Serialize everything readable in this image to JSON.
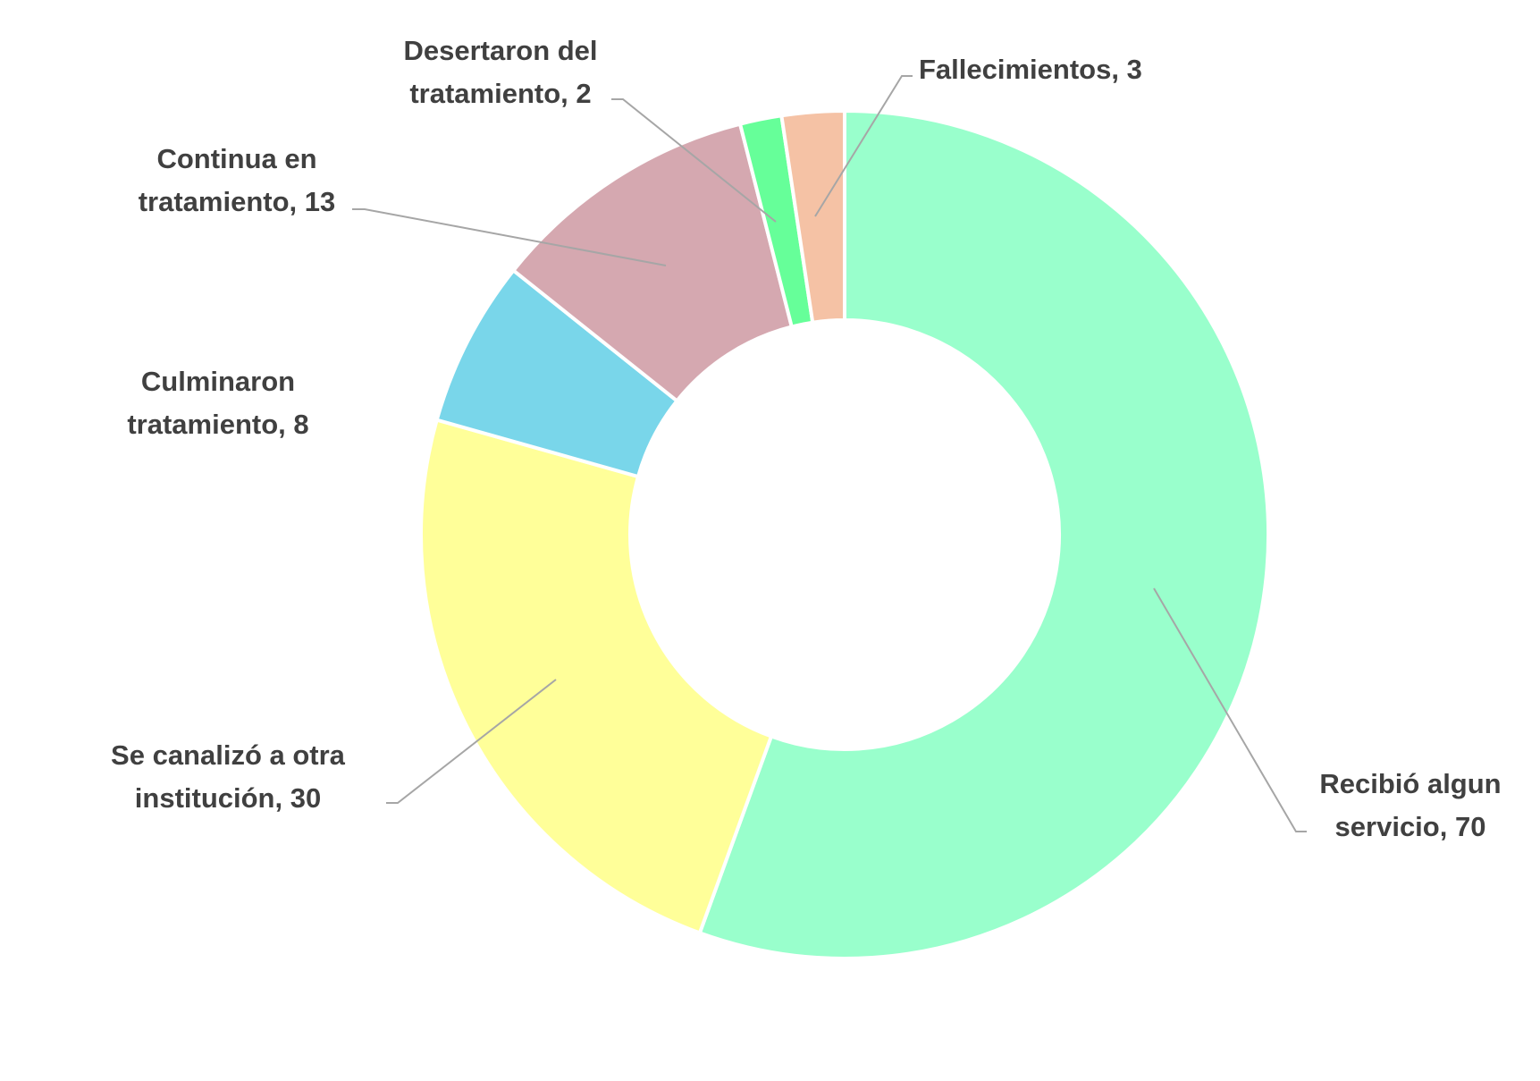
{
  "chart_data": {
    "type": "pie",
    "variant": "donut",
    "title": "",
    "slices": [
      {
        "label": "Recibió algun servicio",
        "value": 70,
        "display": [
          "Recibió algun",
          "servicio, 70"
        ],
        "color": "#99ffcc"
      },
      {
        "label": "Se canalizó a otra institución",
        "value": 30,
        "display": [
          "Se canalizó a otra",
          "institución, 30"
        ],
        "color": "#ffff99"
      },
      {
        "label": "Culminaron tratamiento",
        "value": 8,
        "display": [
          "Culminaron",
          "tratamiento, 8"
        ],
        "color": "#79d6ea"
      },
      {
        "label": "Continua en tratamiento",
        "value": 13,
        "display": [
          "Continua en",
          "tratamiento, 13"
        ],
        "color": "#d5a8b0"
      },
      {
        "label": "Desertaron del tratamiento",
        "value": 2,
        "display": [
          "Desertaron del",
          "tratamiento, 2"
        ],
        "color": "#66ff99"
      },
      {
        "label": "Fallecimientos",
        "value": 3,
        "display": [
          "Fallecimientos, 3"
        ],
        "color": "#f5c2a5"
      }
    ],
    "legend": "none",
    "data_labels": "category and value, outside with leader lines"
  }
}
